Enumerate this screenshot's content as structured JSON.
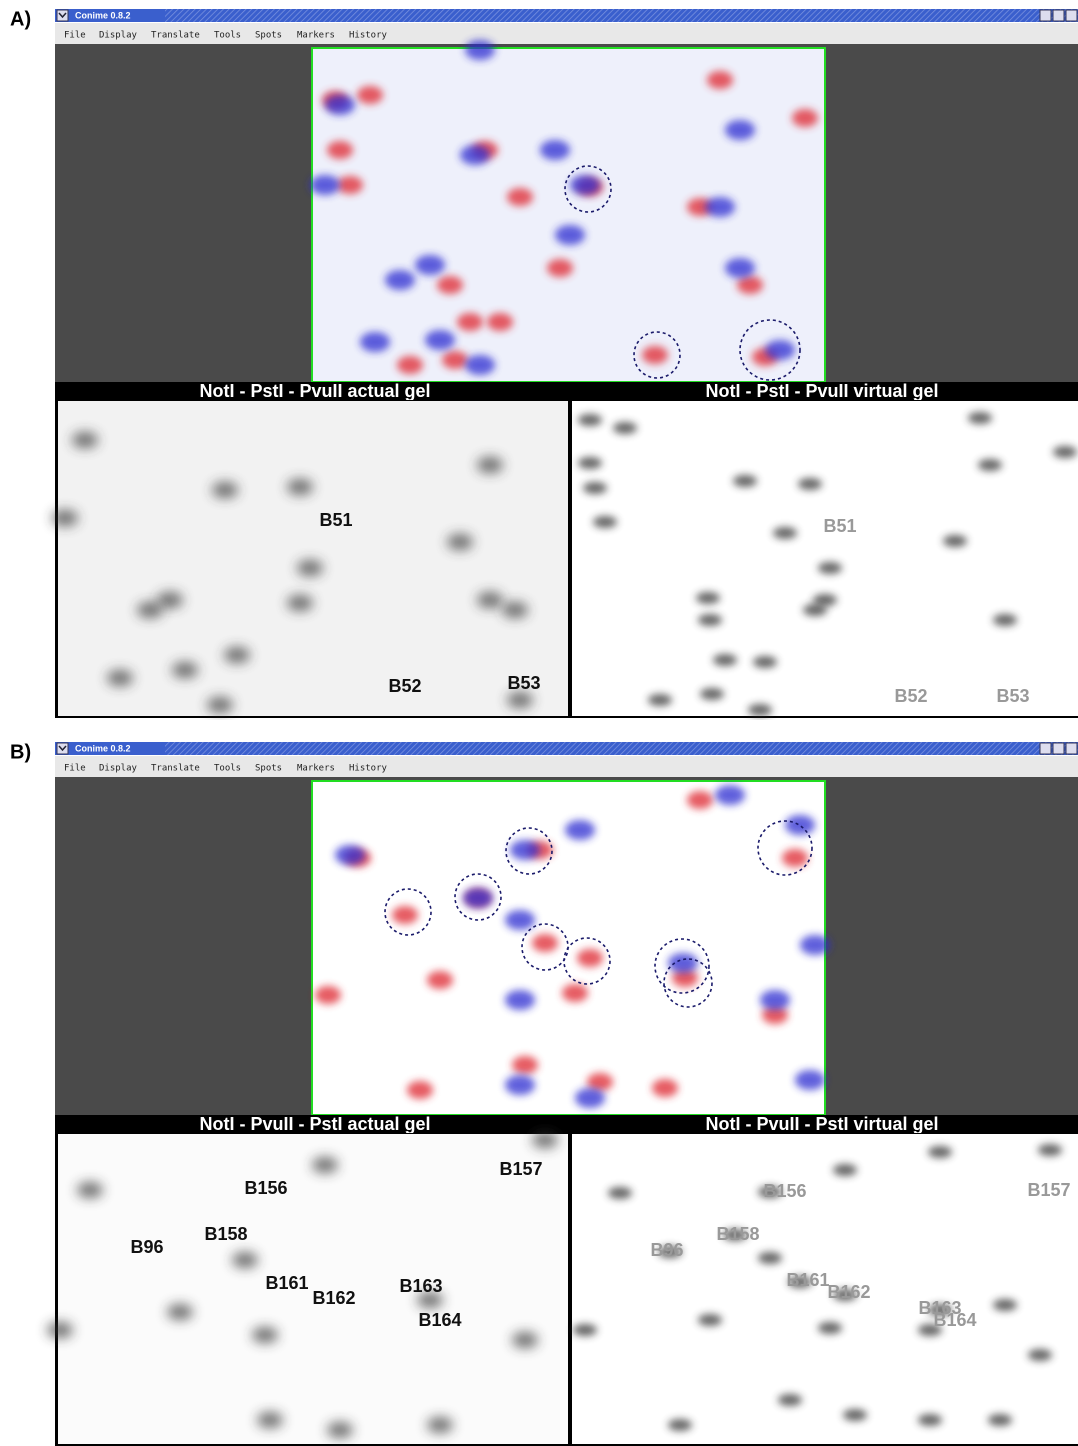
{
  "panels": [
    {
      "label": "A)",
      "window": {
        "title": "Conime 0.8.2",
        "menu": [
          "File",
          "Display",
          "Translate",
          "Tools",
          "Spots",
          "Markers",
          "History"
        ]
      },
      "actual_gel": {
        "title": "NotI - PstI - PvuII actual gel",
        "spots": [
          "B51",
          "B52",
          "B53"
        ]
      },
      "virtual_gel": {
        "title": "NotI - PstI - PvuII virtual gel",
        "spots": [
          "B51",
          "B52",
          "B53"
        ]
      }
    },
    {
      "label": "B)",
      "window": {
        "title": "Conime 0.8.2",
        "menu": [
          "File",
          "Display",
          "Translate",
          "Tools",
          "Spots",
          "Markers",
          "History"
        ]
      },
      "actual_gel": {
        "title": "NotI - PvuII - PstI actual gel",
        "spots": [
          "B156",
          "B157",
          "B158",
          "B96",
          "B161",
          "B162",
          "B163",
          "B164"
        ]
      },
      "virtual_gel": {
        "title": "NotI - PvuII - PstI virtual gel",
        "spots": [
          "B156",
          "B157",
          "B158",
          "B96",
          "B161",
          "B162",
          "B163",
          "B164"
        ]
      }
    }
  ]
}
